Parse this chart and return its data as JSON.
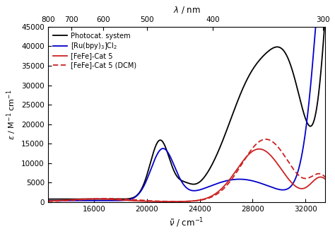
{
  "xlabel_bottom": "$\\tilde{\\nu}$ / cm$^{-1}$",
  "xlabel_top": "$\\lambda$ / nm",
  "ylabel": "$\\varepsilon$ / M$^{-1}$ cm$^{-1}$",
  "xlim": [
    12500,
    33500
  ],
  "ylim": [
    0,
    45000
  ],
  "yticks": [
    0,
    5000,
    10000,
    15000,
    20000,
    25000,
    30000,
    35000,
    40000,
    45000
  ],
  "xticks_bottom": [
    16000,
    20000,
    24000,
    28000,
    32000
  ],
  "nm_ticks": [
    800,
    700,
    600,
    500,
    400,
    300
  ],
  "legend": [
    {
      "label": "Photocat. system",
      "color": "#000000",
      "linestyle": "solid"
    },
    {
      "label": "[Ru(bpy)$_3$]Cl$_2$",
      "color": "#0000cc",
      "linestyle": "solid"
    },
    {
      "label": "[FeFe]-Cat 5",
      "color": "#cc2222",
      "linestyle": "solid"
    },
    {
      "label": "[FeFe]-Cat 5 (DCM)",
      "color": "#cc2222",
      "linestyle": "dashed"
    }
  ],
  "background": "#ffffff"
}
